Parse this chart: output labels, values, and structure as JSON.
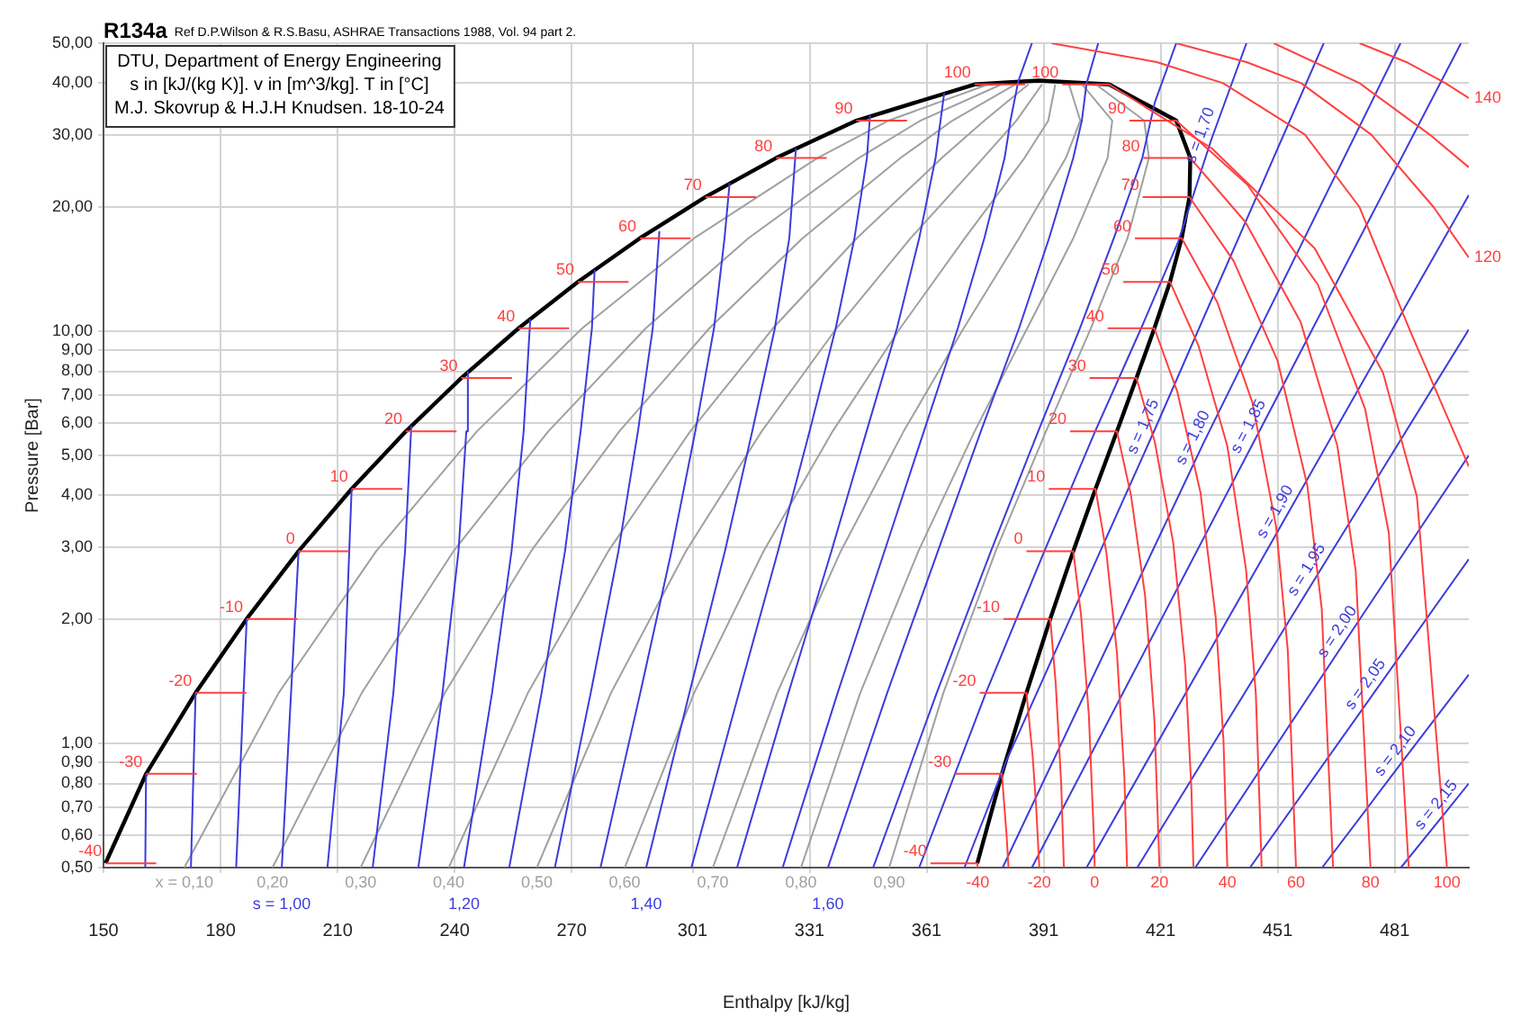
{
  "chart_data": {
    "type": "line",
    "title": "R134a",
    "subtitle": "Ref D.P.Wilson & R.S.Basu, ASHRAE Transactions 1988, Vol. 94 part 2.",
    "xlabel": "Enthalpy [kJ/kg]",
    "ylabel": "Pressure [Bar]",
    "xlim": [
      150,
      500
    ],
    "xticks": [
      150,
      180,
      210,
      240,
      270,
      301,
      331,
      361,
      391,
      421,
      451,
      481
    ],
    "ylim": [
      0.5,
      50
    ],
    "yticks": [
      {
        "value": 0.5,
        "label": "0,50"
      },
      {
        "value": 0.6,
        "label": "0,60"
      },
      {
        "value": 0.7,
        "label": "0,70"
      },
      {
        "value": 0.8,
        "label": "0,80"
      },
      {
        "value": 0.9,
        "label": "0,90"
      },
      {
        "value": 1,
        "label": "1,00"
      },
      {
        "value": 2,
        "label": "2,00"
      },
      {
        "value": 3,
        "label": "3,00"
      },
      {
        "value": 4,
        "label": "4,00"
      },
      {
        "value": 5,
        "label": "5,00"
      },
      {
        "value": 6,
        "label": "6,00"
      },
      {
        "value": 7,
        "label": "7,00"
      },
      {
        "value": 8,
        "label": "8,00"
      },
      {
        "value": 9,
        "label": "9,00"
      },
      {
        "value": 10,
        "label": "10,00"
      },
      {
        "value": 20,
        "label": "20,00"
      },
      {
        "value": 30,
        "label": "30,00"
      },
      {
        "value": 40,
        "label": "40,00"
      },
      {
        "value": 50,
        "label": "50,00"
      }
    ],
    "log": "y",
    "grid": true,
    "series": [
      {
        "color": "#ff4040",
        "x": [
          150.5,
          163.5
        ],
        "values": [
          0.512,
          0.512
        ]
      },
      {
        "color": "#ff4040",
        "x": [
          362.0,
          374.0,
          374.1
        ],
        "values": [
          0.512,
          0.512,
          0.5
        ]
      },
      {
        "color": "#ff4040",
        "x": [
          160.9,
          173.9
        ],
        "values": [
          0.844,
          0.844
        ]
      },
      {
        "color": "#ff4040",
        "x": [
          368.3,
          380.3,
          381.5,
          382.0
        ],
        "values": [
          0.844,
          0.844,
          0.6,
          0.5
        ]
      },
      {
        "color": "#ff4040",
        "x": [
          173.6,
          186.6
        ],
        "values": [
          1.327,
          1.327
        ]
      },
      {
        "color": "#ff4040",
        "x": [
          374.6,
          386.6,
          388.2,
          389.1,
          389.9
        ],
        "values": [
          1.327,
          1.327,
          0.93,
          0.7,
          0.5
        ]
      },
      {
        "color": "#ff4040",
        "x": [
          186.7,
          199.7
        ],
        "values": [
          2.006,
          2.006
        ]
      },
      {
        "color": "#ff4040",
        "x": [
          380.7,
          392.7,
          394.1,
          395.5,
          396.2
        ],
        "values": [
          2.006,
          2.006,
          1.4,
          0.8,
          0.5
        ]
      },
      {
        "color": "#ff4040",
        "x": [
          200,
          213
        ],
        "values": [
          2.928,
          2.928
        ]
      },
      {
        "color": "#ff4040",
        "x": [
          386.6,
          398.6,
          400.6,
          402.6,
          403.9,
          404.1
        ],
        "values": [
          2.928,
          2.928,
          2.05,
          1.17,
          0.59,
          0.5
        ]
      },
      {
        "color": "#ff4040",
        "x": [
          213.6,
          226.6
        ],
        "values": [
          4.146,
          4.146
        ]
      },
      {
        "color": "#ff4040",
        "x": [
          392.3,
          404.3,
          407.1,
          409.8,
          411.7,
          412.4
        ],
        "values": [
          4.146,
          4.146,
          2.9,
          1.66,
          0.83,
          0.5
        ]
      },
      {
        "color": "#ff4040",
        "x": [
          227.5,
          240.5
        ],
        "values": [
          5.717,
          5.717
        ]
      },
      {
        "color": "#ff4040",
        "x": [
          397.8,
          409.8,
          413.4,
          417.0,
          419.4,
          420.7
        ],
        "values": [
          5.717,
          5.717,
          4.0,
          2.29,
          1.14,
          0.5
        ]
      },
      {
        "color": "#ff4040",
        "x": [
          241.7,
          254.7
        ],
        "values": [
          7.702,
          7.702
        ]
      },
      {
        "color": "#ff4040",
        "x": [
          402.8,
          414.8,
          419.5,
          424.2,
          427.3,
          428.9,
          429.4
        ],
        "values": [
          7.702,
          7.702,
          5.39,
          3.08,
          1.54,
          0.77,
          0.5
        ]
      },
      {
        "color": "#ff4040",
        "x": [
          256.4,
          269.4
        ],
        "values": [
          10.17,
          10.17
        ]
      },
      {
        "color": "#ff4040",
        "x": [
          407.4,
          419.4,
          425.3,
          431.2,
          435.1,
          437.1,
          438.1
        ],
        "values": [
          10.17,
          10.17,
          7.12,
          4.07,
          2.03,
          1.02,
          0.5
        ]
      },
      {
        "color": "#ff4040",
        "x": [
          271.6,
          284.6
        ],
        "values": [
          13.18,
          13.18
        ]
      },
      {
        "color": "#ff4040",
        "x": [
          411.4,
          423.4,
          430.7,
          438.1,
          442.9,
          445.4,
          446.9
        ],
        "values": [
          13.18,
          13.18,
          9.23,
          5.27,
          2.64,
          1.32,
          0.5
        ]
      },
      {
        "color": "#ff4040",
        "x": [
          287.5,
          300.5
        ],
        "values": [
          16.82,
          16.82
        ]
      },
      {
        "color": "#ff4040",
        "x": [
          414.4,
          426.4,
          435.5,
          444.5,
          450.6,
          453.6,
          455.7
        ],
        "values": [
          16.82,
          16.82,
          11.77,
          6.73,
          3.36,
          1.68,
          0.5
        ]
      },
      {
        "color": "#ff4040",
        "x": [
          304.3,
          317.3
        ],
        "values": [
          21.17,
          21.17
        ]
      },
      {
        "color": "#ff4040",
        "x": [
          416.4,
          428.4,
          439.7,
          451.0,
          458.6,
          462.3,
          465.2
        ],
        "values": [
          21.17,
          21.17,
          14.82,
          8.47,
          4.23,
          2.12,
          0.5
        ]
      },
      {
        "color": "#ff4040",
        "x": [
          322.4,
          335.4
        ],
        "values": [
          26.33,
          26.33
        ]
      },
      {
        "color": "#ff4040",
        "x": [
          416.6,
          428.6,
          442.7,
          456.9,
          466.3,
          471.0,
          474.8
        ],
        "values": [
          26.33,
          26.33,
          18.43,
          10.53,
          5.27,
          2.63,
          0.5
        ]
      },
      {
        "color": "#ff4040",
        "x": [
          343,
          356
        ],
        "values": [
          32.44,
          32.44
        ]
      },
      {
        "color": "#ff4040",
        "x": [
          413,
          425,
          443.2,
          461.3,
          473.4,
          479.5,
          484.6
        ],
        "values": [
          32.44,
          32.44,
          22.71,
          12.98,
          6.49,
          3.24,
          0.5
        ]
      },
      {
        "color": "#ff4040",
        "x": [
          373.3,
          386.3
        ],
        "values": [
          39.72,
          39.72
        ]
      },
      {
        "color": "#ff4040",
        "x": [
          395.8,
          407.8,
          434.1,
          460.5,
          478,
          486.7,
          494.4
        ],
        "values": [
          39.72,
          39.72,
          27.8,
          15.89,
          7.94,
          3.97,
          0.5
        ]
      },
      {
        "color": "#ff4040",
        "x": [
          393,
          420,
          437,
          458,
          472,
          485,
          500
        ],
        "values": [
          50,
          45,
          40,
          30,
          20,
          10,
          4.7
        ]
      },
      {
        "color": "#ff4040",
        "x": [
          425,
          443,
          457,
          475,
          491,
          500
        ],
        "values": [
          50,
          45,
          40,
          30,
          20,
          15.1
        ]
      },
      {
        "color": "#ff4040",
        "x": [
          450,
          472,
          490,
          500
        ],
        "values": [
          50,
          40,
          30,
          25
        ]
      },
      {
        "color": "#ff4040",
        "x": [
          472,
          484,
          494,
          500
        ],
        "values": [
          50,
          45,
          40,
          36.8
        ]
      },
      {
        "color": "#3c3cdc",
        "x": [
          160.7,
          160.9
        ],
        "values": [
          0.5,
          0.844
        ]
      },
      {
        "color": "#3c3cdc",
        "x": [
          172.4,
          173.6
        ],
        "values": [
          0.5,
          1.327
        ]
      },
      {
        "color": "#3c3cdc",
        "x": [
          184.0,
          186.7
        ],
        "values": [
          0.5,
          2.006
        ]
      },
      {
        "color": "#3c3cdc",
        "x": [
          195.7,
          200.0
        ],
        "values": [
          0.5,
          2.928
        ]
      },
      {
        "color": "#3c3cdc",
        "x": [
          207.4,
          211.6,
          213.6
        ],
        "values": [
          0.5,
          1.327,
          4.146
        ]
      },
      {
        "color": "#3c3cdc",
        "x": [
          219.0,
          224.3,
          227.3,
          228.9
        ],
        "values": [
          0.5,
          1.327,
          2.928,
          5.9
        ]
      },
      {
        "color": "#3c3cdc",
        "x": [
          230.7,
          236.9,
          241.0,
          243.0,
          243.4
        ],
        "values": [
          0.5,
          1.327,
          2.928,
          5.717,
          8.0
        ]
      },
      {
        "color": "#3c3cdc",
        "x": [
          242.4,
          249.6,
          254.6,
          257.7,
          259.4
        ],
        "values": [
          0.5,
          1.327,
          2.928,
          5.717,
          10.7
        ]
      },
      {
        "color": "#3c3cdc",
        "x": [
          254.0,
          262.3,
          268.3,
          272.3,
          275.2,
          275.9
        ],
        "values": [
          0.5,
          1.327,
          2.928,
          5.717,
          10.17,
          14.1
        ]
      },
      {
        "color": "#3c3cdc",
        "x": [
          265.7,
          274.9,
          282.0,
          287.0,
          290.8,
          292.5
        ],
        "values": [
          0.5,
          1.327,
          2.928,
          5.717,
          10.17,
          17.5
        ]
      },
      {
        "color": "#3c3cdc",
        "x": [
          277.4,
          287.6,
          295.6,
          301.7,
          306.5,
          309.2,
          310.5
        ],
        "values": [
          0.5,
          1.327,
          2.928,
          5.717,
          10.17,
          16.82,
          22.9
        ]
      },
      {
        "color": "#3c3cdc",
        "x": [
          289.1,
          300.2,
          309.3,
          316.3,
          322.1,
          325.8,
          327.5
        ],
        "values": [
          0.5,
          1.327,
          2.928,
          5.717,
          10.17,
          16.82,
          27.8
        ]
      },
      {
        "color": "#3c3cdc",
        "x": [
          300.7,
          312.9,
          322.9,
          331.0,
          337.7,
          342.5,
          345.7,
          346.5
        ],
        "values": [
          0.5,
          1.327,
          2.928,
          5.717,
          10.17,
          16.82,
          26.33,
          33.4
        ]
      },
      {
        "color": "#3c3cdc",
        "x": [
          312.4,
          325.6,
          336.6,
          345.6,
          353.4,
          359.1,
          363.3,
          365.5
        ],
        "values": [
          0.5,
          1.327,
          2.928,
          5.717,
          10.17,
          16.82,
          26.33,
          37.8
        ]
      },
      {
        "color": "#3c3cdc",
        "x": [
          324.1,
          338.2,
          350.2,
          360.3,
          369.0,
          375.8,
          381.0,
          382.5,
          384.5,
          388
        ],
        "values": [
          0.5,
          1.327,
          2.928,
          5.717,
          10.17,
          16.82,
          26.33,
          32.44,
          40.4,
          50
        ]
      },
      {
        "color": "#3c3cdc",
        "x": [
          335.7,
          350.9,
          363.9,
          374.9,
          384.7,
          392.4,
          398.6,
          400.8,
          402,
          405
        ],
        "values": [
          0.5,
          1.327,
          2.928,
          5.717,
          10.17,
          16.82,
          26.33,
          32.44,
          39.9,
          50
        ]
      },
      {
        "color": "#3c3cdc",
        "x": [
          347.3,
          363.6,
          377.5,
          389.6,
          400.3,
          409.0,
          416.3,
          419.5,
          425
        ],
        "values": [
          0.5,
          1.327,
          2.928,
          5.717,
          10.17,
          16.82,
          26.33,
          35.9,
          50
        ]
      },
      {
        "color": "#3c3cdc",
        "x": [
          359.1,
          376.2,
          391.2,
          404.2,
          416.0,
          425.5,
          434,
          443
        ],
        "values": [
          0.5,
          1.327,
          2.928,
          5.717,
          10.17,
          16.5,
          29.2,
          50
        ]
      },
      {
        "color": "#3c3cdc",
        "x": [
          370.7,
          381.5,
          419.3,
          462.8
        ],
        "values": [
          0.5,
          0.91,
          5.72,
          50
        ]
      },
      {
        "color": "#3c3cdc",
        "x": [
          380.5,
          432,
          482.5
        ],
        "values": [
          0.5,
          5.36,
          50
        ]
      },
      {
        "color": "#3c3cdc",
        "x": [
          388,
          446.2,
          498
        ],
        "values": [
          0.5,
          5.7,
          50
        ]
      },
      {
        "color": "#3c3cdc",
        "x": [
          402,
          453,
          500
        ],
        "values": [
          0.5,
          3.53,
          21.4
        ]
      },
      {
        "color": "#3c3cdc",
        "x": [
          415,
          461,
          500
        ],
        "values": [
          0.5,
          2.55,
          10.1
        ]
      },
      {
        "color": "#3c3cdc",
        "x": [
          429.9,
          468.8,
          500
        ],
        "values": [
          0.5,
          1.8,
          5.0
        ]
      },
      {
        "color": "#3c3cdc",
        "x": [
          443.9,
          476,
          500
        ],
        "values": [
          0.5,
          1.34,
          2.8
        ]
      },
      {
        "color": "#3c3cdc",
        "x": [
          462.4,
          483.6,
          500
        ],
        "values": [
          0.5,
          0.92,
          1.47
        ]
      },
      {
        "color": "#3c3cdc",
        "x": [
          482.6,
          494,
          500
        ],
        "values": [
          0.5,
          0.68,
          0.8
        ]
      },
      {
        "color": "#a0a0a0",
        "x": [
          170.7,
          194.9,
          219.9,
          245.7,
          272.7,
          301.4,
          333.0,
          351.2,
          376.8
        ],
        "values": [
          0.5,
          1.327,
          2.928,
          5.717,
          10.17,
          16.82,
          26.33,
          32.44,
          39.72
        ]
      },
      {
        "color": "#a0a0a0",
        "x": [
          193.3,
          216.2,
          239.7,
          264.0,
          289.0,
          315.3,
          343.6,
          359.4,
          380.2
        ],
        "values": [
          0.5,
          1.327,
          2.928,
          5.717,
          10.17,
          16.82,
          26.33,
          32.44,
          39.72
        ]
      },
      {
        "color": "#a0a0a0",
        "x": [
          215.9,
          237.5,
          259.6,
          282.2,
          305.3,
          329.2,
          354.3,
          367.6,
          383.7
        ],
        "values": [
          0.5,
          1.327,
          2.928,
          5.717,
          10.17,
          16.82,
          26.33,
          32.44,
          39.72
        ]
      },
      {
        "color": "#a0a0a0",
        "x": [
          238.5,
          258.8,
          279.4,
          300.4,
          321.6,
          343.1,
          364.9,
          375.8,
          387.1
        ],
        "values": [
          0.5,
          1.327,
          2.928,
          5.717,
          10.17,
          16.82,
          26.33,
          32.44,
          39.72
        ]
      },
      {
        "color": "#a0a0a0",
        "x": [
          261.1,
          280.1,
          299.3,
          318.7,
          337.9,
          356.9,
          375.5,
          384.0,
          390.6
        ],
        "values": [
          0.5,
          1.327,
          2.928,
          5.717,
          10.17,
          16.82,
          26.33,
          32.44,
          39.72
        ]
      },
      {
        "color": "#a0a0a0",
        "x": [
          283.6,
          301.4,
          319.2,
          336.9,
          354.2,
          370.8,
          386.1,
          392.2,
          394.0
        ],
        "values": [
          0.5,
          1.327,
          2.928,
          5.717,
          10.17,
          16.82,
          26.33,
          32.44,
          39.72
        ]
      },
      {
        "color": "#a0a0a0",
        "x": [
          306.2,
          322.7,
          339.0,
          355.1,
          370.5,
          384.7,
          396.7,
          400.4,
          397.5
        ],
        "values": [
          0.5,
          1.327,
          2.928,
          5.717,
          10.17,
          16.82,
          26.33,
          32.44,
          39.72
        ]
      },
      {
        "color": "#a0a0a0",
        "x": [
          328.8,
          344.0,
          358.9,
          373.3,
          386.8,
          398.6,
          407.4,
          408.6,
          400.9
        ],
        "values": [
          0.5,
          1.327,
          2.928,
          5.717,
          10.17,
          16.82,
          26.33,
          32.44,
          39.72
        ]
      },
      {
        "color": "#a0a0a0",
        "x": [
          351.4,
          365.3,
          378.7,
          391.6,
          403.1,
          412.5,
          418.0,
          416.8,
          404.4
        ],
        "values": [
          0.5,
          1.327,
          2.928,
          5.717,
          10.17,
          16.82,
          26.33,
          32.44,
          39.72
        ]
      },
      {
        "color": "#000000",
        "x": [
          150.5,
          160.9,
          173.6,
          186.7,
          200,
          213.6,
          227.5,
          241.7,
          256.4,
          271.6,
          287.5,
          304.3,
          322.4,
          343,
          373.3,
          389.6,
          407.8,
          425,
          428.6,
          428.4,
          426.4,
          423.4,
          419.4,
          414.8,
          409.8,
          404.3,
          398.6,
          392.7,
          386.6,
          380.3,
          374.0
        ],
        "values": [
          0.512,
          0.844,
          1.327,
          2.006,
          2.928,
          4.146,
          5.717,
          7.702,
          10.17,
          13.18,
          16.82,
          21.17,
          26.33,
          32.44,
          39.72,
          40.59,
          39.72,
          32.44,
          26.33,
          21.17,
          16.82,
          13.18,
          10.17,
          7.702,
          5.717,
          4.146,
          2.928,
          2.006,
          1.327,
          0.844,
          0.512
        ]
      }
    ],
    "annotations": [
      "DTU, Department of Energy Engineering",
      "s in [kJ/(kg K)]. v in [m^3/kg]. T in [°C]",
      "M.J. Skovrup & H.J.H Knudsen. 18-10-24",
      {
        "text": "-40",
        "x": 150.5,
        "y": 0.512
      },
      {
        "text": "-30",
        "x": 160.9,
        "y": 0.844
      },
      {
        "text": "-20",
        "x": 173.6,
        "y": 1.327
      },
      {
        "text": "-10",
        "x": 186.7,
        "y": 2.006
      },
      {
        "text": "0",
        "x": 200,
        "y": 2.928
      },
      {
        "text": "10",
        "x": 213.6,
        "y": 4.146
      },
      {
        "text": "20",
        "x": 227.5,
        "y": 5.717
      },
      {
        "text": "30",
        "x": 241.7,
        "y": 7.702
      },
      {
        "text": "40",
        "x": 256.4,
        "y": 10.17
      },
      {
        "text": "50",
        "x": 271.6,
        "y": 13.18
      },
      {
        "text": "60",
        "x": 287.5,
        "y": 16.82
      },
      {
        "text": "70",
        "x": 304.3,
        "y": 21.17
      },
      {
        "text": "80",
        "x": 322.4,
        "y": 26.33
      },
      {
        "text": "90",
        "x": 343,
        "y": 32.44
      },
      {
        "text": "100",
        "x": 373.3,
        "y": 39.72
      },
      {
        "text": "-40",
        "x": 362.0,
        "y": 0.512
      },
      {
        "text": "-30",
        "x": 368.3,
        "y": 0.844
      },
      {
        "text": "-20",
        "x": 374.6,
        "y": 1.327
      },
      {
        "text": "-10",
        "x": 380.7,
        "y": 2.006
      },
      {
        "text": "0",
        "x": 386.6,
        "y": 2.928
      },
      {
        "text": "10",
        "x": 392.3,
        "y": 4.146
      },
      {
        "text": "20",
        "x": 397.8,
        "y": 5.717
      },
      {
        "text": "30",
        "x": 402.8,
        "y": 7.702
      },
      {
        "text": "40",
        "x": 407.4,
        "y": 10.17
      },
      {
        "text": "50",
        "x": 411.4,
        "y": 13.18
      },
      {
        "text": "60",
        "x": 414.4,
        "y": 16.82
      },
      {
        "text": "70",
        "x": 416.4,
        "y": 21.17
      },
      {
        "text": "80",
        "x": 416.6,
        "y": 26.33
      },
      {
        "text": "90",
        "x": 413,
        "y": 32.44
      },
      {
        "text": "100",
        "x": 395.8,
        "y": 39.72
      },
      {
        "text": "x = 0,10",
        "x": 170.7,
        "y": 0.5
      },
      {
        "text": "0,20",
        "x": 193.3,
        "y": 0.5
      },
      {
        "text": "0,30",
        "x": 215.9,
        "y": 0.5
      },
      {
        "text": "0,40",
        "x": 238.5,
        "y": 0.5
      },
      {
        "text": "0,50",
        "x": 261.1,
        "y": 0.5
      },
      {
        "text": "0,60",
        "x": 283.6,
        "y": 0.5
      },
      {
        "text": "0,70",
        "x": 306.2,
        "y": 0.5
      },
      {
        "text": "0,80",
        "x": 328.8,
        "y": 0.5
      },
      {
        "text": "0,90",
        "x": 351.4,
        "y": 0.5
      },
      {
        "text": "s = 1,00",
        "x": 195.7,
        "y": 0.5
      },
      {
        "text": "1,20",
        "x": 242.4,
        "y": 0.5
      },
      {
        "text": "1,40",
        "x": 289.1,
        "y": 0.5
      },
      {
        "text": "1,60",
        "x": 335.7,
        "y": 0.5
      },
      {
        "text": "-40",
        "x": 374.1,
        "y": 0.5
      },
      {
        "text": "-20",
        "x": 389.9,
        "y": 0.5
      },
      {
        "text": "0",
        "x": 404.1,
        "y": 0.5
      },
      {
        "text": "20",
        "x": 420.7,
        "y": 0.5
      },
      {
        "text": "40",
        "x": 438.1,
        "y": 0.5
      },
      {
        "text": "60",
        "x": 455.7,
        "y": 0.5
      },
      {
        "text": "80",
        "x": 474.8,
        "y": 0.5
      },
      {
        "text": "100",
        "x": 494.4,
        "y": 0.5
      },
      {
        "text": "120",
        "x": 500,
        "y": 15.1
      },
      {
        "text": "140",
        "x": 500,
        "y": 36.8
      },
      {
        "text": "s = 1,70",
        "x": 434,
        "y": 29.2
      },
      {
        "text": "s = 1,75",
        "x": 419.3,
        "y": 5.72
      },
      {
        "text": "s = 1,80",
        "x": 432,
        "y": 5.36
      },
      {
        "text": "s = 1,85",
        "x": 446.2,
        "y": 5.7
      },
      {
        "text": "s = 1,90",
        "x": 453,
        "y": 3.53
      },
      {
        "text": "s = 1,95",
        "x": 461,
        "y": 2.55
      },
      {
        "text": "s = 2,00",
        "x": 468.8,
        "y": 1.8
      },
      {
        "text": "s = 2,05",
        "x": 476,
        "y": 1.34
      },
      {
        "text": "s = 2,10",
        "x": 483.6,
        "y": 0.92
      },
      {
        "text": "s = 2,15",
        "x": 494,
        "y": 0.68
      }
    ]
  }
}
